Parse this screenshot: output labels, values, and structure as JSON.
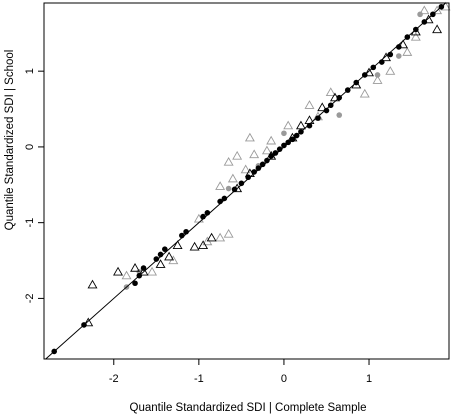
{
  "chart_data": {
    "type": "scatter",
    "title": "",
    "xlabel": "Quantile Standardized SDI | Complete Sample",
    "ylabel": "Quantile Standardized SDI | School",
    "xlim": [
      -2.82,
      1.94
    ],
    "ylim": [
      -2.8,
      1.9
    ],
    "x_ticks": [
      -2,
      -1,
      0,
      1
    ],
    "x_tick_labels": [
      "-2",
      "-1",
      "0",
      "1"
    ],
    "y_ticks": [
      -2,
      -1,
      0,
      1
    ],
    "y_tick_labels": [
      "-2",
      "-1",
      "0",
      "1"
    ],
    "grid": false,
    "reference_line": {
      "slope": 1,
      "intercept": 0
    },
    "colors": {
      "black": "#000000",
      "dark_gray": "#555555",
      "gray": "#9a9a9a",
      "light_gray": "#b8b8b8"
    },
    "series": [
      {
        "marker": "circle",
        "color": "black",
        "points": [
          [
            -2.7,
            -2.7
          ],
          [
            -2.35,
            -2.35
          ],
          [
            -1.75,
            -1.8
          ],
          [
            -1.7,
            -1.7
          ],
          [
            -1.65,
            -1.6
          ],
          [
            -1.5,
            -1.48
          ],
          [
            -1.45,
            -1.42
          ],
          [
            -1.4,
            -1.35
          ],
          [
            -1.2,
            -1.17
          ],
          [
            -1.15,
            -1.12
          ],
          [
            -0.95,
            -0.92
          ],
          [
            -0.9,
            -0.87
          ],
          [
            -0.75,
            -0.72
          ],
          [
            -0.7,
            -0.68
          ],
          [
            -0.58,
            -0.56
          ],
          [
            -0.5,
            -0.48
          ],
          [
            -0.42,
            -0.4
          ],
          [
            -0.35,
            -0.33
          ],
          [
            -0.3,
            -0.28
          ],
          [
            -0.25,
            -0.23
          ],
          [
            -0.2,
            -0.18
          ],
          [
            -0.15,
            -0.12
          ],
          [
            -0.1,
            -0.08
          ],
          [
            -0.05,
            -0.03
          ],
          [
            0.0,
            0.02
          ],
          [
            0.05,
            0.06
          ],
          [
            0.1,
            0.1
          ],
          [
            0.15,
            0.15
          ],
          [
            0.2,
            0.2
          ],
          [
            0.3,
            0.28
          ],
          [
            0.4,
            0.38
          ],
          [
            0.5,
            0.48
          ],
          [
            0.55,
            0.55
          ],
          [
            0.65,
            0.65
          ],
          [
            0.75,
            0.75
          ],
          [
            0.85,
            0.85
          ],
          [
            0.95,
            0.95
          ],
          [
            1.05,
            1.05
          ],
          [
            1.15,
            1.12
          ],
          [
            1.25,
            1.22
          ],
          [
            1.35,
            1.32
          ],
          [
            1.45,
            1.45
          ],
          [
            1.55,
            1.55
          ],
          [
            1.65,
            1.65
          ],
          [
            1.75,
            1.75
          ],
          [
            1.85,
            1.85
          ]
        ]
      },
      {
        "marker": "circle",
        "color": "gray",
        "points": [
          [
            -1.85,
            -1.85
          ],
          [
            -1.7,
            -1.65
          ],
          [
            0.0,
            0.18
          ],
          [
            0.65,
            0.42
          ],
          [
            1.1,
            0.95
          ],
          [
            1.35,
            1.2
          ],
          [
            1.6,
            1.75
          ],
          [
            -0.65,
            -0.55
          ],
          [
            -0.3,
            -0.25
          ]
        ]
      },
      {
        "marker": "triangle",
        "color": "black",
        "points": [
          [
            -2.25,
            -1.82
          ],
          [
            -1.95,
            -1.65
          ],
          [
            -1.75,
            -1.6
          ],
          [
            -1.65,
            -1.65
          ],
          [
            -1.45,
            -1.55
          ],
          [
            -1.35,
            -1.45
          ],
          [
            -1.25,
            -1.3
          ],
          [
            -1.05,
            -1.32
          ],
          [
            -0.95,
            -1.3
          ],
          [
            -0.85,
            -1.2
          ],
          [
            -2.3,
            -2.32
          ],
          [
            -0.55,
            -0.55
          ],
          [
            -0.15,
            -0.12
          ],
          [
            0.2,
            0.28
          ],
          [
            0.3,
            0.35
          ],
          [
            0.45,
            0.52
          ],
          [
            0.6,
            0.65
          ],
          [
            0.85,
            0.82
          ],
          [
            1.0,
            0.98
          ],
          [
            1.2,
            1.18
          ],
          [
            1.4,
            1.35
          ],
          [
            1.55,
            1.52
          ],
          [
            1.7,
            1.68
          ],
          [
            1.8,
            1.55
          ],
          [
            -0.4,
            -0.35
          ],
          [
            0.1,
            0.12
          ]
        ]
      },
      {
        "marker": "triangle",
        "color": "gray",
        "points": [
          [
            -1.85,
            -1.7
          ],
          [
            -1.55,
            -1.65
          ],
          [
            -1.3,
            -1.5
          ],
          [
            -0.9,
            -1.25
          ],
          [
            -0.75,
            -1.2
          ],
          [
            -0.65,
            -1.15
          ],
          [
            -1.0,
            -0.95
          ],
          [
            -0.75,
            -0.52
          ],
          [
            -0.6,
            -0.42
          ],
          [
            -0.45,
            -0.3
          ],
          [
            -0.65,
            -0.2
          ],
          [
            -0.55,
            -0.12
          ],
          [
            -0.35,
            -0.1
          ],
          [
            -0.15,
            0.08
          ],
          [
            0.05,
            0.28
          ],
          [
            0.3,
            0.55
          ],
          [
            0.55,
            0.72
          ],
          [
            0.95,
            0.7
          ],
          [
            1.1,
            0.88
          ],
          [
            1.25,
            1.0
          ],
          [
            1.45,
            1.25
          ],
          [
            1.55,
            1.45
          ],
          [
            1.65,
            1.8
          ],
          [
            1.8,
            1.8
          ],
          [
            1.9,
            1.85
          ],
          [
            -0.4,
            0.12
          ],
          [
            -0.2,
            -0.05
          ],
          [
            0.4,
            0.4
          ]
        ]
      }
    ]
  }
}
